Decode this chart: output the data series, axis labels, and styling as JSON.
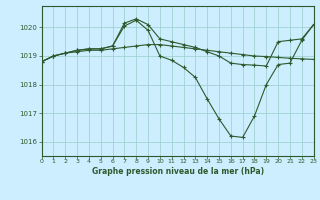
{
  "background_color": "#cceeff",
  "grid_color": "#99cccc",
  "line_color": "#2d5a2d",
  "title": "Graphe pression niveau de la mer (hPa)",
  "xlim": [
    0,
    23
  ],
  "ylim": [
    1015.5,
    1020.75
  ],
  "yticks": [
    1016,
    1017,
    1018,
    1019,
    1020
  ],
  "xticks": [
    0,
    1,
    2,
    3,
    4,
    5,
    6,
    7,
    8,
    9,
    10,
    11,
    12,
    13,
    14,
    15,
    16,
    17,
    18,
    19,
    20,
    21,
    22,
    23
  ],
  "line1_x": [
    0,
    1,
    2,
    3,
    4,
    5,
    6,
    7,
    8,
    9,
    10,
    11,
    12,
    13,
    14,
    15,
    16,
    17,
    18,
    19,
    20,
    21,
    22,
    23
  ],
  "line1_y": [
    1018.8,
    1019.0,
    1019.1,
    1019.15,
    1019.2,
    1019.2,
    1019.25,
    1019.3,
    1019.35,
    1019.4,
    1019.4,
    1019.35,
    1019.3,
    1019.25,
    1019.2,
    1019.15,
    1019.1,
    1019.05,
    1019.0,
    1018.98,
    1018.95,
    1018.92,
    1018.9,
    1018.88
  ],
  "line2_x": [
    0,
    1,
    2,
    3,
    4,
    5,
    6,
    7,
    8,
    9,
    10,
    11,
    12,
    13,
    14,
    15,
    16,
    17,
    18,
    19,
    20,
    21,
    22,
    23
  ],
  "line2_y": [
    1018.8,
    1019.0,
    1019.1,
    1019.2,
    1019.25,
    1019.25,
    1019.35,
    1020.05,
    1020.25,
    1019.9,
    1019.0,
    1018.85,
    1018.6,
    1018.25,
    1017.5,
    1016.8,
    1016.2,
    1016.15,
    1016.9,
    1018.0,
    1018.7,
    1018.75,
    1019.55,
    1020.1
  ],
  "line3_x": [
    0,
    1,
    2,
    3,
    4,
    5,
    6,
    7,
    8,
    9,
    10,
    11,
    12,
    13,
    14,
    15,
    16,
    17,
    18,
    19,
    20,
    21,
    22,
    23
  ],
  "line3_y": [
    1018.8,
    1019.0,
    1019.1,
    1019.2,
    1019.25,
    1019.25,
    1019.35,
    1020.15,
    1020.3,
    1020.1,
    1019.6,
    1019.5,
    1019.4,
    1019.3,
    1019.15,
    1019.0,
    1018.75,
    1018.7,
    1018.68,
    1018.65,
    1019.5,
    1019.55,
    1019.6,
    1020.1
  ]
}
